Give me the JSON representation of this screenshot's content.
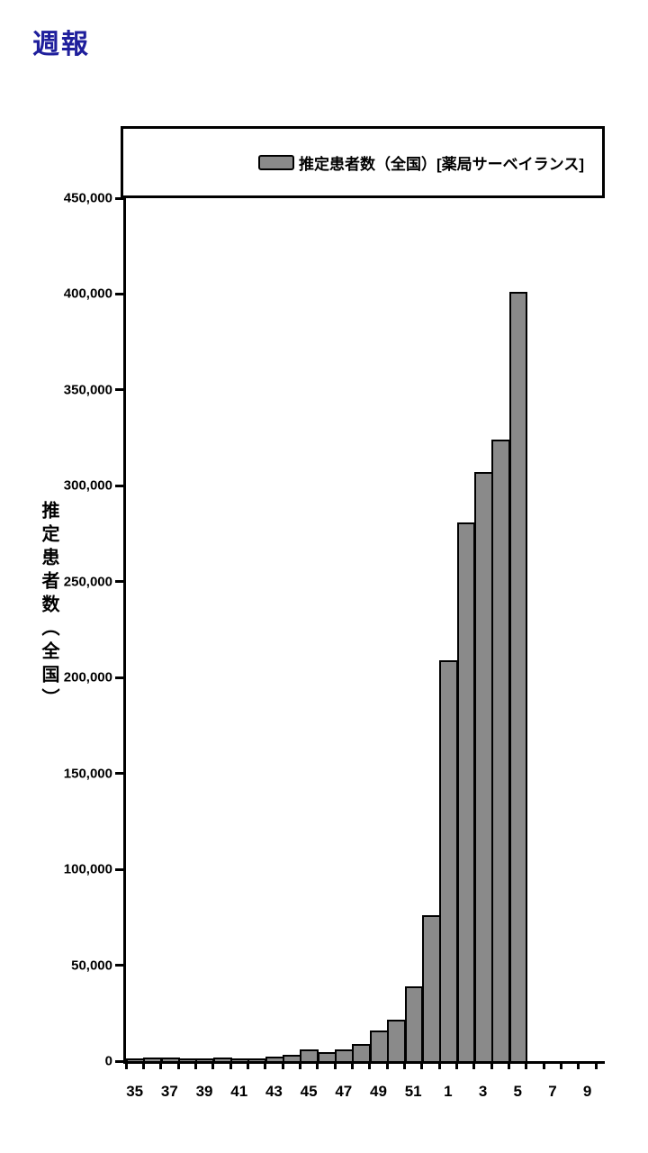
{
  "page": {
    "title": "週報",
    "title_color": "#1f1f9c",
    "background": "#ffffff"
  },
  "legend": {
    "label": "推定患者数（全国）[薬局サーベイランス]",
    "swatch_color": "#8a8a8a"
  },
  "chart_data": {
    "type": "bar",
    "title": "",
    "xlabel": "",
    "ylabel": "推定患者数（全国）",
    "legend": [
      "推定患者数（全国）[薬局サーベイランス]"
    ],
    "legend_position": "top",
    "grid": false,
    "bar_color": "#8a8a8a",
    "bar_border_color": "#000000",
    "ylim": [
      0,
      450000
    ],
    "y_tick_step": 50000,
    "y_tick_labels": [
      "0",
      "50,000",
      "100,000",
      "150,000",
      "200,000",
      "250,000",
      "300,000",
      "350,000",
      "400,000",
      "450,000"
    ],
    "categories": [
      "35",
      "36",
      "37",
      "38",
      "39",
      "40",
      "41",
      "42",
      "43",
      "44",
      "45",
      "46",
      "47",
      "48",
      "49",
      "50",
      "51",
      "52",
      "1",
      "2",
      "3",
      "4",
      "5",
      "6",
      "7",
      "8",
      "9"
    ],
    "values": [
      1000,
      2000,
      2000,
      1000,
      1500,
      2000,
      1500,
      1500,
      2500,
      3500,
      6000,
      4500,
      6000,
      9000,
      16000,
      21500,
      39000,
      76000,
      209000,
      281000,
      307000,
      324000,
      401000,
      0,
      0,
      0,
      0
    ],
    "x_tick_labels": [
      "35",
      "37",
      "39",
      "41",
      "43",
      "45",
      "47",
      "49",
      "51",
      "1",
      "3",
      "5",
      "7",
      "9"
    ]
  }
}
